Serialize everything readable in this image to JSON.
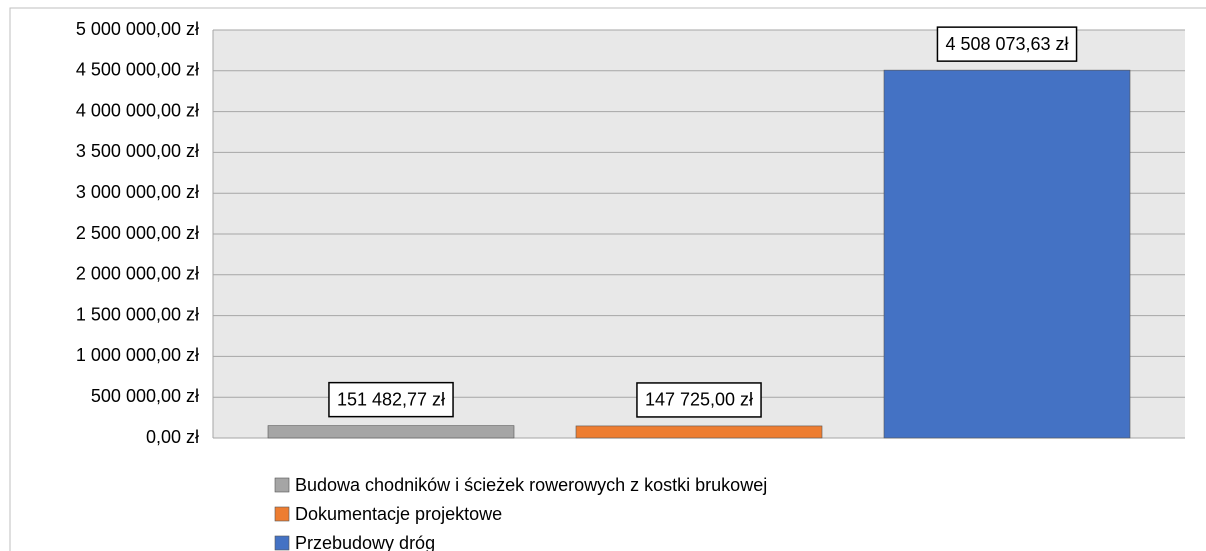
{
  "chart_data": {
    "type": "bar",
    "series": [
      {
        "name": "Budowa chodników i ścieżek rowerowych z kostki brukowej",
        "color": "#a5a5a5",
        "values": [
          151482.77
        ],
        "value_labels": [
          "151 482,77 zł"
        ]
      },
      {
        "name": "Dokumentacje projektowe",
        "color": "#ed7d31",
        "values": [
          147725.0
        ],
        "value_labels": [
          "147 725,00 zł"
        ]
      },
      {
        "name": "Przebudowy dróg",
        "color": "#4472c4",
        "values": [
          4508073.63
        ],
        "value_labels": [
          "4 508 073,63 zł"
        ]
      }
    ],
    "ylim": [
      0,
      5000000
    ],
    "yticks": [
      {
        "value": 0,
        "label": "0,00 zł"
      },
      {
        "value": 500000,
        "label": "500 000,00 zł"
      },
      {
        "value": 1000000,
        "label": "1 000 000,00 zł"
      },
      {
        "value": 1500000,
        "label": "1 500 000,00 zł"
      },
      {
        "value": 2000000,
        "label": "2 000 000,00 zł"
      },
      {
        "value": 2500000,
        "label": "2 500 000,00 zł"
      },
      {
        "value": 3000000,
        "label": "3 000 000,00 zł"
      },
      {
        "value": 3500000,
        "label": "3 500 000,00 zł"
      },
      {
        "value": 4000000,
        "label": "4 000 000,00 zł"
      },
      {
        "value": 4500000,
        "label": "4 500 000,00 zł"
      },
      {
        "value": 5000000,
        "label": "5 000 000,00 zł"
      }
    ],
    "grid": true,
    "legend": "bottom"
  }
}
